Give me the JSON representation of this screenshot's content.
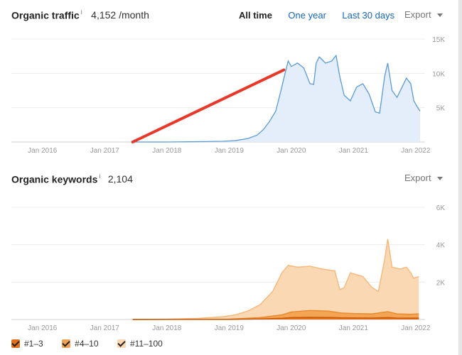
{
  "header1": {
    "title": "Organic traffic",
    "info": "i",
    "value": "4,152 /month",
    "range_options": [
      "All time",
      "One year",
      "Last 30 days"
    ],
    "active_range": "All time",
    "export_label": "Export"
  },
  "header2": {
    "title": "Organic keywords",
    "info": "i",
    "value": "2,104",
    "export_label": "Export"
  },
  "legend": [
    {
      "label": "#1–3",
      "color": "#e0701a"
    },
    {
      "label": "#4–10",
      "color": "#f2a24e"
    },
    {
      "label": "#11–100",
      "color": "#fbd6b0"
    }
  ],
  "chart_data": [
    {
      "type": "area",
      "x_ticks": [
        "Jan 2016",
        "Jan 2017",
        "Jan 2018",
        "Jan 2019",
        "Jan 2020",
        "Jan 2021",
        "Jan 2022"
      ],
      "y_ticks": [
        "5K",
        "10K",
        "15K"
      ],
      "ylim": [
        0,
        15000
      ],
      "xlim": [
        2015.5,
        2022.15
      ],
      "line_color": "#5b9bd5",
      "fill_color": "#e3eefa",
      "series": [
        {
          "points": [
            [
              2017.45,
              0
            ],
            [
              2018.0,
              0
            ],
            [
              2018.5,
              50
            ],
            [
              2018.9,
              100
            ],
            [
              2019.1,
              200
            ],
            [
              2019.3,
              500
            ],
            [
              2019.45,
              1000
            ],
            [
              2019.55,
              1800
            ],
            [
              2019.65,
              3000
            ],
            [
              2019.75,
              4500
            ],
            [
              2019.82,
              7000
            ],
            [
              2019.9,
              10000
            ],
            [
              2019.95,
              11800
            ],
            [
              2020.0,
              11000
            ],
            [
              2020.1,
              11500
            ],
            [
              2020.2,
              10800
            ],
            [
              2020.3,
              8500
            ],
            [
              2020.36,
              8400
            ],
            [
              2020.4,
              11500
            ],
            [
              2020.45,
              12400
            ],
            [
              2020.55,
              11500
            ],
            [
              2020.65,
              11800
            ],
            [
              2020.72,
              12600
            ],
            [
              2020.78,
              9500
            ],
            [
              2020.85,
              6800
            ],
            [
              2020.95,
              6000
            ],
            [
              2021.05,
              8000
            ],
            [
              2021.15,
              8500
            ],
            [
              2021.25,
              7000
            ],
            [
              2021.35,
              4400
            ],
            [
              2021.42,
              4200
            ],
            [
              2021.5,
              9500
            ],
            [
              2021.55,
              11500
            ],
            [
              2021.62,
              7500
            ],
            [
              2021.7,
              6500
            ],
            [
              2021.78,
              8000
            ],
            [
              2021.85,
              9300
            ],
            [
              2021.92,
              8500
            ],
            [
              2021.97,
              6000
            ],
            [
              2022.02,
              5200
            ],
            [
              2022.07,
              4500
            ]
          ]
        }
      ],
      "annotation": {
        "type": "trend-line",
        "color": "#e8382a",
        "from": [
          2017.45,
          0
        ],
        "to": [
          2019.88,
          10500
        ]
      }
    },
    {
      "type": "area",
      "x_ticks": [
        "Jan 2016",
        "Jan 2017",
        "Jan 2018",
        "Jan 2019",
        "Jan 2020",
        "Jan 2021",
        "Jan 2022"
      ],
      "y_ticks": [
        "2K",
        "4K",
        "6K"
      ],
      "ylim": [
        0,
        6000
      ],
      "xlim": [
        2015.5,
        2022.15
      ],
      "series": [
        {
          "name": "#11–100",
          "color": "#fbd6b0",
          "line": "#f6b77a",
          "points": [
            [
              2017.45,
              0
            ],
            [
              2018.0,
              20
            ],
            [
              2018.5,
              60
            ],
            [
              2018.9,
              150
            ],
            [
              2019.1,
              250
            ],
            [
              2019.3,
              450
            ],
            [
              2019.5,
              800
            ],
            [
              2019.7,
              1500
            ],
            [
              2019.85,
              2500
            ],
            [
              2019.95,
              2900
            ],
            [
              2020.1,
              2800
            ],
            [
              2020.3,
              2850
            ],
            [
              2020.5,
              2700
            ],
            [
              2020.7,
              2600
            ],
            [
              2020.78,
              1600
            ],
            [
              2020.85,
              1700
            ],
            [
              2020.95,
              2500
            ],
            [
              2021.05,
              2400
            ],
            [
              2021.15,
              2300
            ],
            [
              2021.3,
              1700
            ],
            [
              2021.4,
              1500
            ],
            [
              2021.5,
              3200
            ],
            [
              2021.55,
              4300
            ],
            [
              2021.62,
              2800
            ],
            [
              2021.75,
              2700
            ],
            [
              2021.85,
              2800
            ],
            [
              2021.92,
              2500
            ],
            [
              2021.97,
              2200
            ],
            [
              2022.05,
              2300
            ]
          ]
        },
        {
          "name": "#4–10",
          "color": "#f2a24e",
          "line": "#e8892c",
          "points": [
            [
              2017.45,
              0
            ],
            [
              2019.0,
              20
            ],
            [
              2019.5,
              100
            ],
            [
              2019.85,
              250
            ],
            [
              2020.0,
              400
            ],
            [
              2020.3,
              480
            ],
            [
              2020.6,
              450
            ],
            [
              2020.8,
              350
            ],
            [
              2021.0,
              320
            ],
            [
              2021.3,
              300
            ],
            [
              2021.55,
              420
            ],
            [
              2021.7,
              300
            ],
            [
              2021.9,
              280
            ],
            [
              2022.05,
              300
            ]
          ]
        },
        {
          "name": "#1–3",
          "color": "#e0701a",
          "line": "#c65a0c",
          "points": [
            [
              2017.45,
              0
            ],
            [
              2019.0,
              5
            ],
            [
              2019.5,
              30
            ],
            [
              2019.85,
              70
            ],
            [
              2020.0,
              100
            ],
            [
              2020.3,
              120
            ],
            [
              2020.6,
              110
            ],
            [
              2020.8,
              90
            ],
            [
              2021.0,
              85
            ],
            [
              2021.3,
              80
            ],
            [
              2021.55,
              100
            ],
            [
              2021.7,
              80
            ],
            [
              2021.9,
              75
            ],
            [
              2022.05,
              80
            ]
          ]
        }
      ]
    }
  ]
}
